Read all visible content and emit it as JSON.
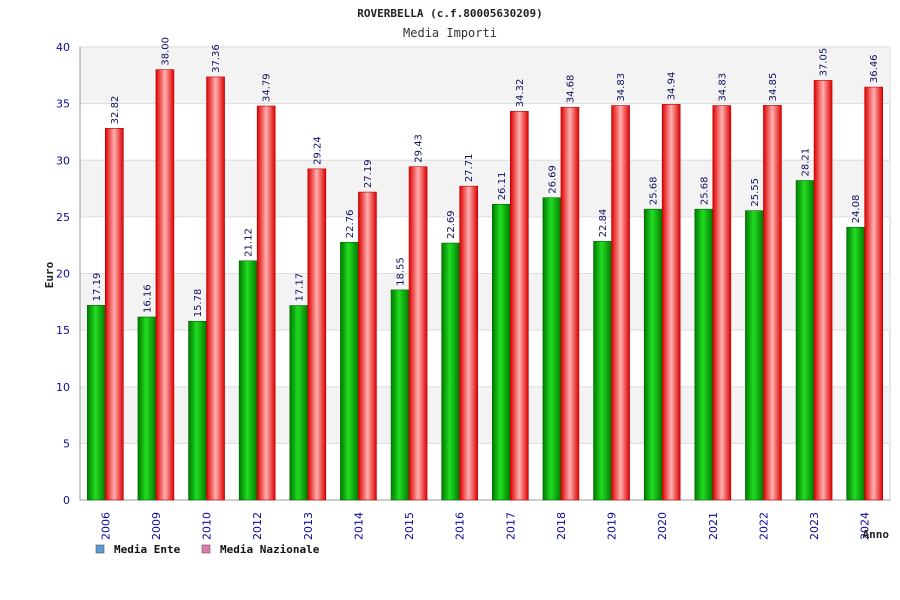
{
  "chart_data": {
    "type": "bar",
    "title": "ROVERBELLA (c.f.80005630209)",
    "subtitle": "Media Importi",
    "xlabel": "Anno",
    "ylabel": "Euro",
    "ylim": [
      0,
      40
    ],
    "yticks": [
      "0",
      "5",
      "10",
      "15",
      "20",
      "25",
      "30",
      "35",
      "40"
    ],
    "categories": [
      "2006",
      "2009",
      "2010",
      "2012",
      "2013",
      "2014",
      "2015",
      "2016",
      "2017",
      "2018",
      "2019",
      "2020",
      "2021",
      "2022",
      "2023",
      "2024"
    ],
    "series": [
      {
        "name": "Media Ente",
        "color": "#00bb00",
        "legend_color": "#5b9bd5",
        "values": [
          17.19,
          16.16,
          15.78,
          21.12,
          17.17,
          22.76,
          18.55,
          22.69,
          26.11,
          26.69,
          22.84,
          25.68,
          25.68,
          25.55,
          28.21,
          24.08
        ],
        "labels": [
          "17.19",
          "16.16",
          "15.78",
          "21.12",
          "17.17",
          "22.76",
          "18.55",
          "22.69",
          "26.11",
          "26.69",
          "22.84",
          "25.68",
          "25.68",
          "25.55",
          "28.21",
          "24.08"
        ]
      },
      {
        "name": "Media Nazionale",
        "color": "#ee1111",
        "legend_color": "#e07ab0",
        "values": [
          32.82,
          38.0,
          37.36,
          34.79,
          29.24,
          27.19,
          29.43,
          27.71,
          34.32,
          34.68,
          34.83,
          34.94,
          34.83,
          34.85,
          37.05,
          36.46
        ],
        "labels": [
          "32.82",
          "38.00",
          "37.36",
          "34.79",
          "29.24",
          "27.19",
          "29.43",
          "27.71",
          "34.32",
          "34.68",
          "34.83",
          "34.94",
          "34.83",
          "34.85",
          "37.05",
          "36.46"
        ]
      }
    ],
    "grid": true,
    "legend_position": "bottom-left"
  }
}
